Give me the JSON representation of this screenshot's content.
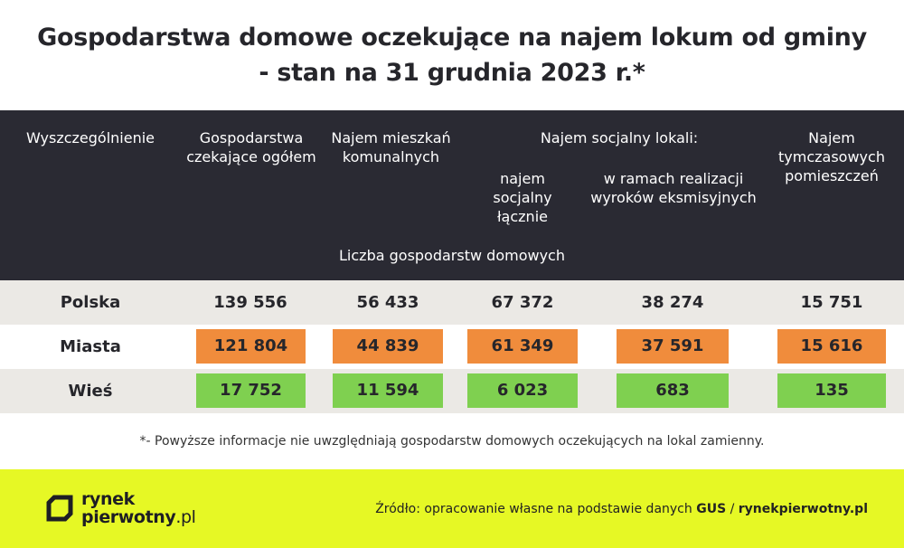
{
  "title": {
    "line1": "Gospodarstwa domowe oczekujące na najem lokum od gminy",
    "line2": "- stan na 31 grudnia 2023 r.*"
  },
  "header": {
    "col_label": "Wyszczególnienie",
    "col_total": "Gospodarstwa czekające ogółem",
    "col_communal": "Najem mieszkań komunalnych",
    "group_social": "Najem socjalny lokali:",
    "col_social_total": "najem socjalny łącznie",
    "col_social_eviction": "w ramach realizacji wyroków eksmisyjnych",
    "col_temporary": "Najem tymczasowych pomieszczeń",
    "unit_label": "Liczba gospodarstw domowych"
  },
  "rows": [
    {
      "label": "Polska",
      "values": [
        "139 556",
        "56 433",
        "67 372",
        "38 274",
        "15 751"
      ]
    },
    {
      "label": "Miasta",
      "values": [
        "121 804",
        "44 839",
        "61 349",
        "37 591",
        "15 616"
      ]
    },
    {
      "label": "Wieś",
      "values": [
        "17 752",
        "11 594",
        "6 023",
        "683",
        "135"
      ]
    }
  ],
  "colors": {
    "header_bg": "#2a2a33",
    "orange": "#f08c3c",
    "green": "#7fd050",
    "footer_bg": "#e6f825"
  },
  "footnote": "*- Powyższe informacje nie uwzględniają gospodarstw domowych oczekujących na lokal zamienny.",
  "footer": {
    "logo_line1": "rynek",
    "logo_line2": "pierwotny",
    "logo_suffix": ".pl",
    "logo_icon": "rynekpierwotny-logo-icon",
    "source_prefix": "Źródło: opracowanie własne na podstawie danych ",
    "source_gus": "GUS",
    "source_sep": " / ",
    "source_site": "rynekpierwotny.pl"
  }
}
